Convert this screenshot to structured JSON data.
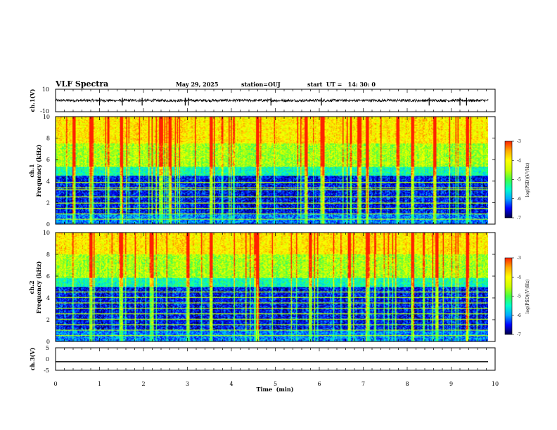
{
  "header": {
    "title": "VLF Spectra",
    "date": "May 29, 2025",
    "station": "station=OUJ",
    "start_ut": "start  UT =   14: 30: 0"
  },
  "colors": {
    "frame": "#000000",
    "colorbar": [
      "#000044",
      "#0000ff",
      "#00aaff",
      "#00ffcc",
      "#44ff44",
      "#ccff00",
      "#ffff00",
      "#ffaa00",
      "#ff2200",
      "#ffffff"
    ]
  },
  "chart_data": [
    {
      "id": "ch1_wave",
      "type": "line",
      "ylabel": "ch.1(V)",
      "ylim": [
        -10,
        10
      ],
      "yticks": [
        "10",
        "-10"
      ],
      "baseline": 0,
      "noise_amplitude": 1.2,
      "spike_times_min": [
        1.0,
        1.52,
        1.97,
        2.95,
        3.02,
        4.9,
        6.05,
        8.5,
        9.2,
        9.35
      ]
    },
    {
      "id": "ch1_spec",
      "type": "heatmap",
      "ylabel": "ch.1\nFrequency (kHz)",
      "ylim": [
        0,
        10
      ],
      "yticks": [
        "0",
        "2",
        "4",
        "6",
        "8",
        "10"
      ],
      "noise_floor_top_khz": 4.5,
      "horizontal_line_khz": [
        0.4,
        0.9,
        1.4,
        1.9,
        2.5,
        3.2,
        3.4,
        3.9
      ],
      "burst_times_min": [
        0.4,
        0.8,
        1.5,
        2.4,
        2.6,
        3.55,
        4.6,
        5.7,
        6.1,
        6.9,
        7.1,
        7.8,
        8.15,
        8.65,
        9.4
      ]
    },
    {
      "id": "ch2_spec",
      "type": "heatmap",
      "ylabel": "ch.2\nFrequency (kHz)",
      "ylim": [
        0,
        10
      ],
      "yticks": [
        "0",
        "2",
        "4",
        "6",
        "8",
        "10"
      ],
      "noise_floor_top_khz": 5.0,
      "horizontal_line_khz": [
        0.5,
        1.0,
        1.5,
        2.0,
        2.5,
        3.0,
        3.5,
        4.0,
        4.5
      ],
      "burst_times_min": [
        0.8,
        1.5,
        2.2,
        3.0,
        3.55,
        4.6,
        5.8,
        6.7,
        7.1,
        8.15,
        8.7,
        9.4
      ]
    },
    {
      "id": "ch3_wave",
      "type": "line",
      "ylabel": "ch.3(V)",
      "ylim": [
        -5,
        5
      ],
      "yticks": [
        "5",
        "0",
        "-5"
      ],
      "baseline": -1.2,
      "noise_amplitude": 0
    }
  ],
  "xaxis": {
    "label": "Time  (min)",
    "range": [
      0,
      10
    ],
    "ticks": [
      "0",
      "1",
      "2",
      "3",
      "4",
      "5",
      "6",
      "7",
      "8",
      "9",
      "10"
    ]
  },
  "colorbars": [
    {
      "label": "log(PSD)(V²/Hz)",
      "ticks": [
        "-3",
        "-4",
        "-5",
        "-6",
        "-7"
      ],
      "range": [
        -7,
        -3
      ]
    },
    {
      "label": "log(PSD)(V²/Hz)",
      "ticks": [
        "-3",
        "-4",
        "-5",
        "-6",
        "-7"
      ],
      "range": [
        -7,
        -3
      ]
    }
  ]
}
